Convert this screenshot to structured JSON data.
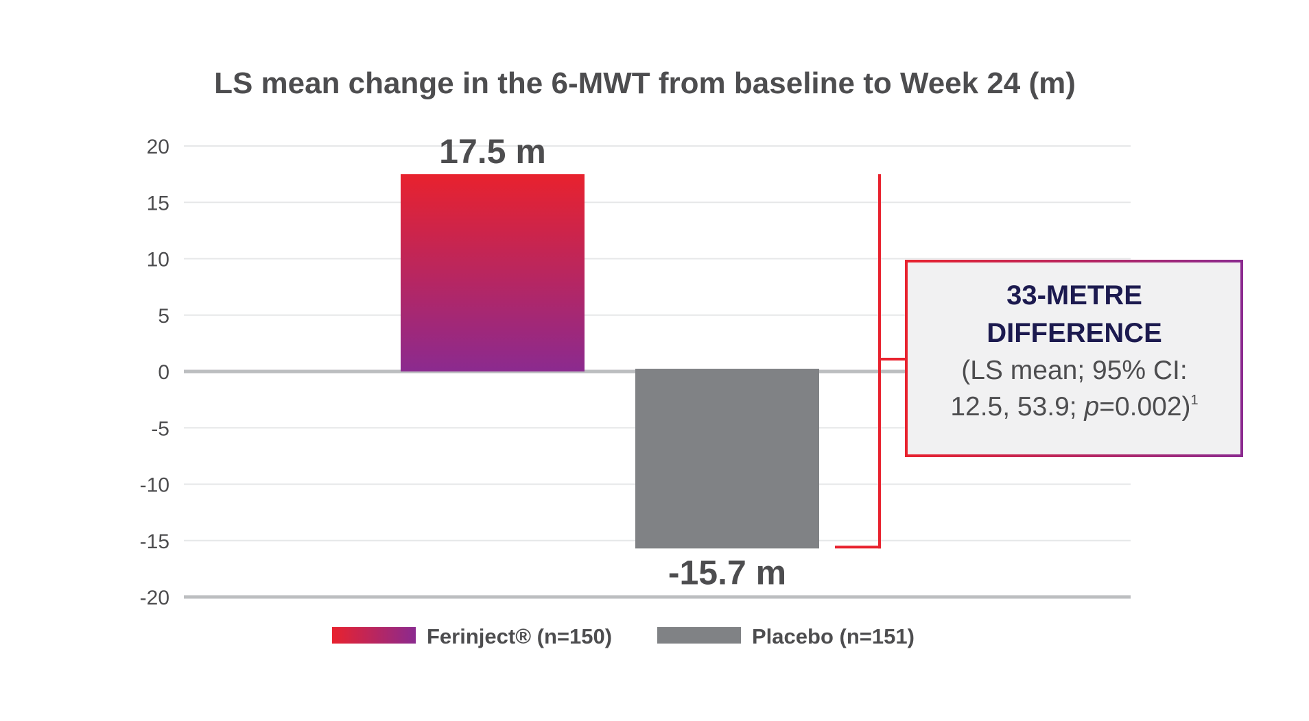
{
  "chart_data": {
    "type": "bar",
    "title": "LS mean change in the 6-MWT from baseline to Week 24 (m)",
    "xlabel": "",
    "ylabel": "",
    "ylim": [
      -20,
      20
    ],
    "yticks": [
      20,
      15,
      10,
      5,
      0,
      -5,
      -10,
      -15,
      -20
    ],
    "grid": true,
    "legend_position": "bottom",
    "series": [
      {
        "name": "Ferinject® (n=150)",
        "value": 17.5,
        "label": "17.5 m",
        "color_top": "#e8222e",
        "color_bottom": "#8b2a8f"
      },
      {
        "name": "Placebo (n=151)",
        "value": -15.7,
        "label": "-15.7 m",
        "color": "#808285"
      }
    ],
    "annotation": {
      "heading_line1": "33-METRE",
      "heading_line2": "DIFFERENCE",
      "body_line1": "(LS mean; 95% CI:",
      "body_line2_prefix": "12.5, 53.9; ",
      "body_p": "p",
      "body_line2_suffix": "=0.002)",
      "footnote_ref": "1",
      "border_color_left": "#e8222e",
      "border_color_right": "#8b2a8f"
    }
  }
}
